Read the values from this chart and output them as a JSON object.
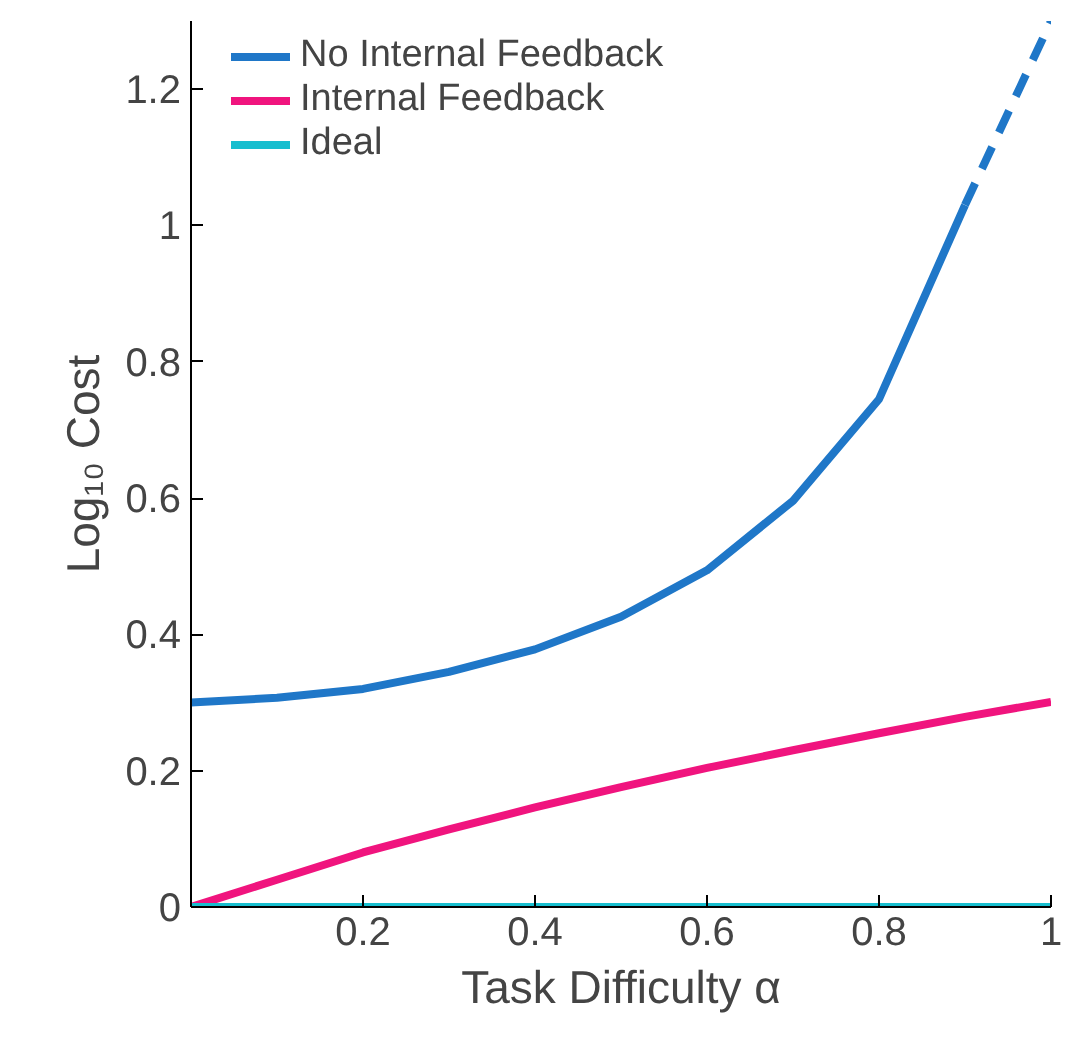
{
  "chart_data": {
    "type": "line",
    "xlabel": "Task Difficulty α",
    "ylabel": "Log₁₀ Cost",
    "x": [
      0,
      0.1,
      0.2,
      0.3,
      0.4,
      0.5,
      0.6,
      0.7,
      0.8,
      0.9,
      1
    ],
    "series": [
      {
        "name": "No Internal Feedback",
        "color": "#1f77c8",
        "values": [
          0.3,
          0.307,
          0.32,
          0.345,
          0.378,
          0.426,
          0.494,
          0.596,
          0.745,
          1.03,
          null
        ]
      },
      {
        "color": "#1f77c8",
        "line_style": "dashed",
        "x": [
          0.9,
          1
        ],
        "values": [
          1.03,
          1.3
        ]
      },
      {
        "name": "Internal Feedback",
        "color": "#f0147e",
        "values": [
          0,
          0.04,
          0.08,
          0.114,
          0.146,
          0.176,
          0.204,
          0.23,
          0.255,
          0.279,
          0.301
        ]
      },
      {
        "name": "Ideal",
        "color": "#17becf",
        "values": [
          0,
          0,
          0,
          0,
          0,
          0,
          0,
          0,
          0,
          0,
          0
        ]
      }
    ],
    "xlim": [
      0,
      1
    ],
    "ylim": [
      0,
      1.3
    ],
    "xticks": [
      0.2,
      0.4,
      0.6,
      0.8,
      1
    ],
    "yticks": [
      0,
      0.2,
      0.4,
      0.6,
      0.8,
      1,
      1.2
    ],
    "grid": false,
    "legend": "top left",
    "line_style": "solid",
    "marker": "none"
  }
}
